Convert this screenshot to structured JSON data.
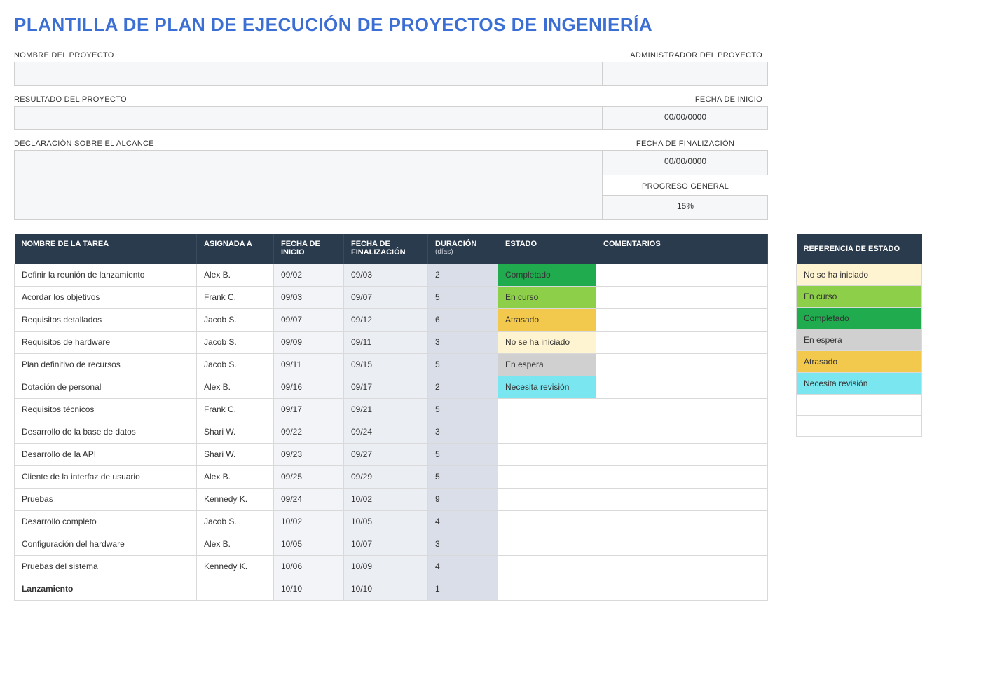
{
  "title": "PLANTILLA DE PLAN DE EJECUCIÓN DE PROYECTOS DE INGENIERÍA",
  "meta": {
    "project_name_label": "NOMBRE DEL PROYECTO",
    "manager_label": "ADMINISTRADOR DEL PROYECTO",
    "deliverable_label": "RESULTADO DEL PROYECTO",
    "start_date_label": "FECHA DE INICIO",
    "scope_label": "DECLARACIÓN SOBRE EL ALCANCE",
    "end_date_label": "FECHA DE FINALIZACIÓN",
    "progress_label": "PROGRESO GENERAL",
    "project_name_value": "",
    "manager_value": "",
    "deliverable_value": "",
    "start_date_value": "00/00/0000",
    "scope_value": "",
    "end_date_value": "00/00/0000",
    "progress_value": "15%"
  },
  "columns": {
    "task": "NOMBRE DE LA TAREA",
    "assigned": "ASIGNADA A",
    "start": "FECHA DE INICIO",
    "end": "FECHA DE FINALIZACIÓN",
    "duration": "DURACIÓN",
    "duration_sub": "(días)",
    "status": "ESTADO",
    "comments": "COMENTARIOS"
  },
  "status_colors": {
    "No se ha iniciado": "#fff4d1",
    "En curso": "#8ecf4a",
    "Completado": "#1fab4e",
    "En espera": "#d0d0d0",
    "Atrasado": "#f2c94c",
    "Necesita revisión": "#7ae6ef"
  },
  "tasks": [
    {
      "name": "Definir la reunión de lanzamiento",
      "assigned": "Alex B.",
      "start": "09/02",
      "end": "09/03",
      "dur": "2",
      "status": "Completado",
      "comments": ""
    },
    {
      "name": "Acordar los objetivos",
      "assigned": "Frank C.",
      "start": "09/03",
      "end": "09/07",
      "dur": "5",
      "status": "En curso",
      "comments": ""
    },
    {
      "name": "Requisitos detallados",
      "assigned": "Jacob S.",
      "start": "09/07",
      "end": "09/12",
      "dur": "6",
      "status": "Atrasado",
      "comments": ""
    },
    {
      "name": "Requisitos de hardware",
      "assigned": "Jacob S.",
      "start": "09/09",
      "end": "09/11",
      "dur": "3",
      "status": "No se ha iniciado",
      "comments": ""
    },
    {
      "name": "Plan definitivo de recursos",
      "assigned": "Jacob S.",
      "start": "09/11",
      "end": "09/15",
      "dur": "5",
      "status": "En espera",
      "comments": ""
    },
    {
      "name": "Dotación de personal",
      "assigned": "Alex B.",
      "start": "09/16",
      "end": "09/17",
      "dur": "2",
      "status": "Necesita revisión",
      "comments": ""
    },
    {
      "name": "Requisitos técnicos",
      "assigned": "Frank C.",
      "start": "09/17",
      "end": "09/21",
      "dur": "5",
      "status": "",
      "comments": ""
    },
    {
      "name": "Desarrollo de la base de datos",
      "assigned": "Shari W.",
      "start": "09/22",
      "end": "09/24",
      "dur": "3",
      "status": "",
      "comments": ""
    },
    {
      "name": "Desarrollo de la API",
      "assigned": "Shari W.",
      "start": "09/23",
      "end": "09/27",
      "dur": "5",
      "status": "",
      "comments": ""
    },
    {
      "name": "Cliente de la interfaz de usuario",
      "assigned": "Alex B.",
      "start": "09/25",
      "end": "09/29",
      "dur": "5",
      "status": "",
      "comments": ""
    },
    {
      "name": "Pruebas",
      "assigned": "Kennedy K.",
      "start": "09/24",
      "end": "10/02",
      "dur": "9",
      "status": "",
      "comments": ""
    },
    {
      "name": "Desarrollo completo",
      "assigned": "Jacob S.",
      "start": "10/02",
      "end": "10/05",
      "dur": "4",
      "status": "",
      "comments": ""
    },
    {
      "name": "Configuración del hardware",
      "assigned": "Alex B.",
      "start": "10/05",
      "end": "10/07",
      "dur": "3",
      "status": "",
      "comments": ""
    },
    {
      "name": "Pruebas del sistema",
      "assigned": "Kennedy K.",
      "start": "10/06",
      "end": "10/09",
      "dur": "4",
      "status": "",
      "comments": ""
    },
    {
      "name": "Lanzamiento",
      "assigned": "",
      "start": "10/10",
      "end": "10/10",
      "dur": "1",
      "status": "",
      "comments": "",
      "bold": true
    }
  ],
  "legend": {
    "header": "REFERENCIA DE ESTADO",
    "items": [
      "No se ha iniciado",
      "En curso",
      "Completado",
      "En espera",
      "Atrasado",
      "Necesita revisión",
      "",
      ""
    ]
  }
}
